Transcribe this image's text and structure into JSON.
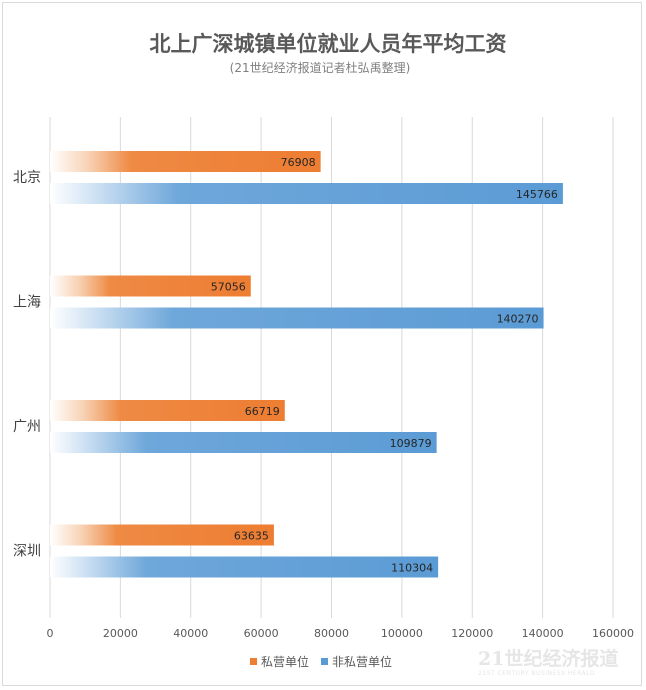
{
  "chart_data": {
    "type": "bar",
    "orientation": "horizontal",
    "title": "北上广深城镇单位就业人员年平均工资",
    "subtitle": "(21世纪经济报道记者杜弘禹整理)",
    "categories": [
      "北京",
      "上海",
      "广州",
      "深圳"
    ],
    "series": [
      {
        "name": "私营单位",
        "values": [
          76908,
          57056,
          66719,
          63635
        ],
        "color": "#ed7d31"
      },
      {
        "name": "非私营单位",
        "values": [
          145766,
          140270,
          109879,
          110304
        ],
        "color": "#5b9bd5"
      }
    ],
    "xlim": [
      0,
      160000
    ],
    "xticks": [
      0,
      20000,
      40000,
      60000,
      80000,
      100000,
      120000,
      140000,
      160000
    ],
    "grid": true,
    "legend_position": "bottom"
  },
  "watermark": {
    "text": "21世纪经济报道",
    "subtext": "21ST CENTURY BUSINESS HERALD"
  }
}
